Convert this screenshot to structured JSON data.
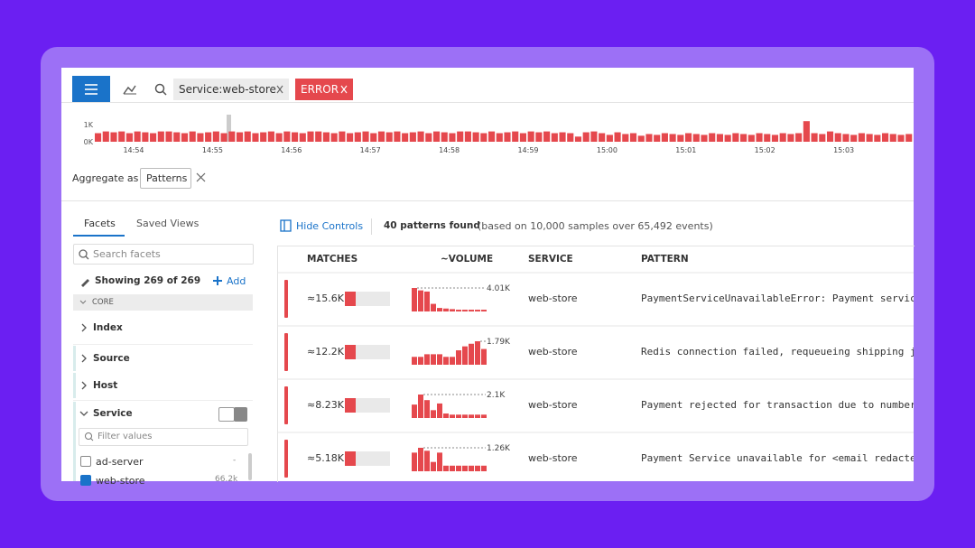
{
  "search": {
    "chips": [
      "Service:web-store",
      "ERROR"
    ]
  },
  "timeline": {
    "yticks": [
      {
        "value": 1,
        "label": "1K"
      },
      {
        "value": 0,
        "label": "0K"
      }
    ],
    "ylim": [
      0,
      1
    ],
    "xlabels": [
      "14:54",
      "14:55",
      "14:56",
      "14:57",
      "14:58",
      "14:59",
      "15:00",
      "15:01",
      "15:02",
      "15:03"
    ],
    "color": "#e5484d",
    "values": [
      0.5,
      0.6,
      0.55,
      0.6,
      0.5,
      0.6,
      0.55,
      0.5,
      0.6,
      0.6,
      0.55,
      0.5,
      0.6,
      0.5,
      0.55,
      0.6,
      0.5,
      0.6,
      0.55,
      0.6,
      0.5,
      0.55,
      0.6,
      0.5,
      0.6,
      0.55,
      0.5,
      0.6,
      0.6,
      0.55,
      0.5,
      0.6,
      0.5,
      0.55,
      0.6,
      0.5,
      0.6,
      0.55,
      0.6,
      0.5,
      0.55,
      0.6,
      0.5,
      0.6,
      0.55,
      0.5,
      0.6,
      0.6,
      0.55,
      0.5,
      0.6,
      0.5,
      0.55,
      0.6,
      0.5,
      0.6,
      0.55,
      0.6,
      0.5,
      0.55,
      0.5,
      0.3,
      0.55,
      0.6,
      0.5,
      0.4,
      0.55,
      0.45,
      0.5,
      0.35,
      0.45,
      0.4,
      0.5,
      0.45,
      0.4,
      0.5,
      0.45,
      0.4,
      0.5,
      0.45,
      0.4,
      0.5,
      0.45,
      0.4,
      0.5,
      0.45,
      0.4,
      0.5,
      0.45,
      0.5,
      1.2,
      0.5,
      0.45,
      0.6,
      0.5,
      0.45,
      0.4,
      0.5,
      0.45,
      0.4,
      0.5,
      0.45,
      0.4,
      0.45
    ]
  },
  "aggregate": {
    "label": "Aggregate as",
    "value": "Patterns"
  },
  "sidebar": {
    "tabs": [
      "Facets",
      "Saved Views"
    ],
    "search_placeholder": "Search facets",
    "showing": "Showing 269 of 269",
    "add": "Add",
    "group": "CORE",
    "facets": [
      "Index",
      "Source",
      "Host",
      "Service"
    ],
    "filter_placeholder": "Filter values",
    "values": [
      {
        "name": "ad-server",
        "count": "-"
      },
      {
        "name": "web-store",
        "count": "66.2k"
      }
    ]
  },
  "results": {
    "hide_controls": "Hide Controls",
    "found": "40 patterns found",
    "found_detail": "(based on 10,000 samples over 65,492 events)",
    "columns": [
      "MATCHES",
      "~VOLUME",
      "SERVICE",
      "PATTERN"
    ],
    "rows": [
      {
        "matches": "≈15.6K",
        "peak": 4.01,
        "peak_label": "4.01K",
        "volume": [
          4.01,
          3.6,
          3.4,
          1.3,
          0.6,
          0.5,
          0.4,
          0.3,
          0.3,
          0.3,
          0.3,
          0.3
        ],
        "service": "web-store",
        "pattern": "PaymentServiceUnavailableError: Payment service"
      },
      {
        "matches": "≈12.2K",
        "peak": 1.79,
        "peak_label": "1.79K",
        "volume": [
          0.6,
          0.6,
          0.8,
          0.8,
          0.8,
          0.6,
          0.6,
          1.1,
          1.4,
          1.6,
          1.79,
          1.2
        ],
        "service": "web-store",
        "pattern": "Redis connection failed, requeueing shipping job"
      },
      {
        "matches": "≈8.23K",
        "peak": 2.1,
        "peak_label": "2.1K",
        "volume": [
          1.2,
          2.1,
          1.6,
          0.7,
          1.3,
          0.4,
          0.3,
          0.3,
          0.3,
          0.3,
          0.3,
          0.3
        ],
        "service": "web-store",
        "pattern": "Payment rejected for transaction due to number o"
      },
      {
        "matches": "≈5.18K",
        "peak": 1.26,
        "peak_label": "1.26K",
        "volume": [
          1.0,
          1.26,
          1.1,
          0.5,
          1.0,
          0.3,
          0.3,
          0.3,
          0.3,
          0.3,
          0.3,
          0.3
        ],
        "service": "web-store",
        "pattern": "Payment Service unavailable for <email redacted>"
      }
    ]
  }
}
